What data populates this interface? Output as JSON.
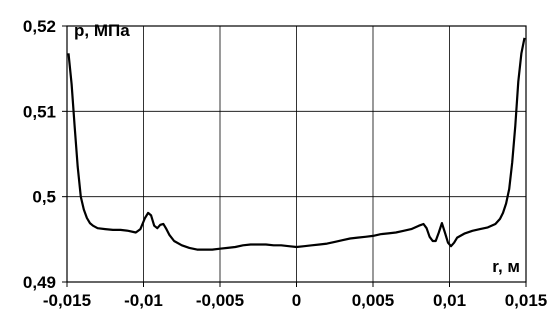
{
  "chart_data": {
    "type": "line",
    "xlabel": "r, м",
    "ylabel": "p, МПа",
    "xlim": [
      -0.015,
      0.015
    ],
    "ylim": [
      0.49,
      0.52
    ],
    "grid": true,
    "x_ticks": [
      -0.015,
      -0.01,
      -0.005,
      0,
      0.005,
      0.01,
      0.015
    ],
    "x_tick_labels": [
      "-0,015",
      "-0,01",
      "-0,005",
      "0",
      "0,005",
      "0,01",
      "0,015"
    ],
    "y_ticks": [
      0.49,
      0.5,
      0.51,
      0.52
    ],
    "y_tick_labels": [
      "0,49",
      "0,5",
      "0,51",
      "0,52"
    ],
    "series": [
      {
        "color": "#000000",
        "x": [
          -0.0149,
          -0.0147,
          -0.0145,
          -0.0143,
          -0.0141,
          -0.0139,
          -0.0137,
          -0.0135,
          -0.0133,
          -0.013,
          -0.0125,
          -0.012,
          -0.0115,
          -0.011,
          -0.0105,
          -0.0102,
          -0.0099,
          -0.0097,
          -0.0095,
          -0.0093,
          -0.0091,
          -0.0089,
          -0.0087,
          -0.0085,
          -0.0083,
          -0.008,
          -0.0075,
          -0.007,
          -0.0065,
          -0.006,
          -0.0055,
          -0.005,
          -0.0045,
          -0.004,
          -0.0035,
          -0.003,
          -0.0025,
          -0.002,
          -0.0015,
          -0.001,
          -0.0005,
          0,
          0.0005,
          0.001,
          0.0015,
          0.002,
          0.0025,
          0.003,
          0.0035,
          0.004,
          0.0045,
          0.005,
          0.0055,
          0.006,
          0.0065,
          0.007,
          0.0075,
          0.008,
          0.0083,
          0.0085,
          0.0087,
          0.0089,
          0.0091,
          0.0093,
          0.0095,
          0.0097,
          0.0099,
          0.0101,
          0.0103,
          0.0105,
          0.011,
          0.0115,
          0.012,
          0.0125,
          0.013,
          0.0133,
          0.0135,
          0.0137,
          0.0139,
          0.0141,
          0.0143,
          0.0145,
          0.0147,
          0.0149
        ],
        "y": [
          0.5168,
          0.5132,
          0.5083,
          0.5035,
          0.5,
          0.4985,
          0.4975,
          0.4969,
          0.4966,
          0.4963,
          0.4962,
          0.4961,
          0.4961,
          0.496,
          0.4958,
          0.4962,
          0.4975,
          0.4981,
          0.4978,
          0.4966,
          0.4963,
          0.4967,
          0.4968,
          0.4962,
          0.4955,
          0.4948,
          0.4943,
          0.494,
          0.4938,
          0.4938,
          0.4938,
          0.4939,
          0.494,
          0.4941,
          0.4943,
          0.4944,
          0.4944,
          0.4944,
          0.4943,
          0.4943,
          0.4942,
          0.4941,
          0.4942,
          0.4943,
          0.4944,
          0.4945,
          0.4947,
          0.4949,
          0.4951,
          0.4952,
          0.4953,
          0.4954,
          0.4956,
          0.4957,
          0.4958,
          0.496,
          0.4962,
          0.4966,
          0.4968,
          0.4963,
          0.4953,
          0.4948,
          0.4948,
          0.4958,
          0.4969,
          0.4958,
          0.4946,
          0.4942,
          0.4946,
          0.4952,
          0.4957,
          0.496,
          0.4962,
          0.4964,
          0.4968,
          0.4974,
          0.4981,
          0.4992,
          0.5009,
          0.504,
          0.5083,
          0.5135,
          0.5168,
          0.5186
        ]
      }
    ]
  }
}
